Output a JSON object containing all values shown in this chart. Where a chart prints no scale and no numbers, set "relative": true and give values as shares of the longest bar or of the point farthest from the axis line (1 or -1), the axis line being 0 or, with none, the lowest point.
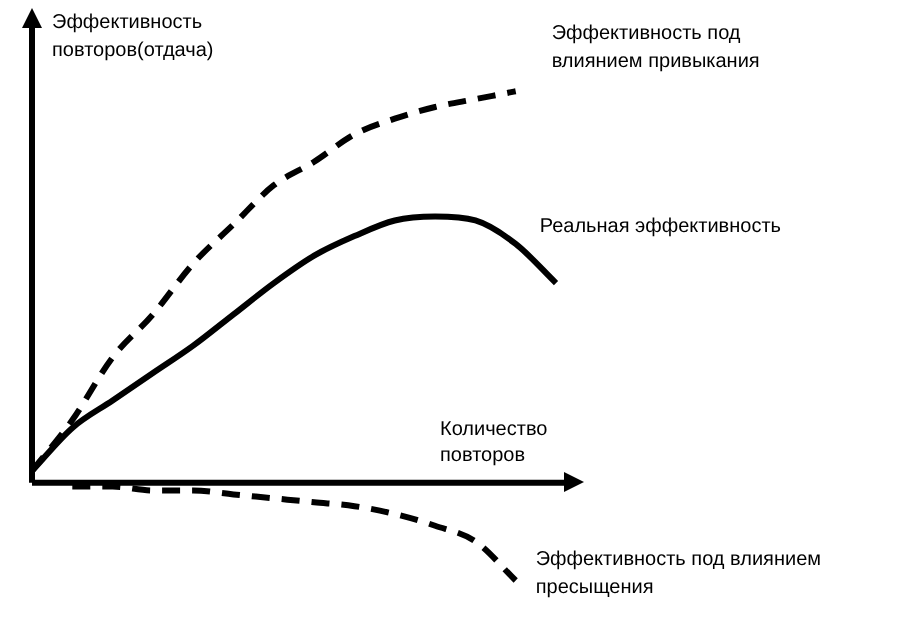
{
  "chart_data": {
    "type": "line",
    "relative": true,
    "xlabel": "Количество повторов",
    "ylabel": "Эффективность повторов(отдача)",
    "tick_labels": false,
    "grid": false,
    "legend": false,
    "marker": "none",
    "categories": [
      null,
      null,
      null,
      null,
      null,
      null,
      null,
      null,
      null,
      null,
      null,
      null,
      null,
      null
    ],
    "series": [
      {
        "name": "Эффективность под влиянием привыкания",
        "color": "#000000",
        "line_style": "dashed",
        "values": [
          0.03,
          0.16,
          0.32,
          0.43,
          0.56,
          0.66,
          0.76,
          0.82,
          0.89,
          0.93,
          0.96,
          0.98,
          1.0,
          null
        ]
      },
      {
        "name": "Реальная эффективность",
        "color": "#000000",
        "line_style": "solid",
        "values": [
          0.03,
          0.14,
          0.21,
          0.28,
          0.35,
          0.43,
          0.51,
          0.58,
          0.63,
          0.67,
          0.68,
          0.67,
          0.61,
          0.51
        ]
      },
      {
        "name": "Эффективность под влиянием пресыщения",
        "color": "#000000",
        "line_style": "dashed",
        "values": [
          null,
          -0.01,
          -0.01,
          -0.02,
          -0.02,
          -0.03,
          -0.04,
          -0.05,
          -0.06,
          -0.08,
          -0.11,
          -0.15,
          -0.25,
          null
        ]
      }
    ]
  }
}
